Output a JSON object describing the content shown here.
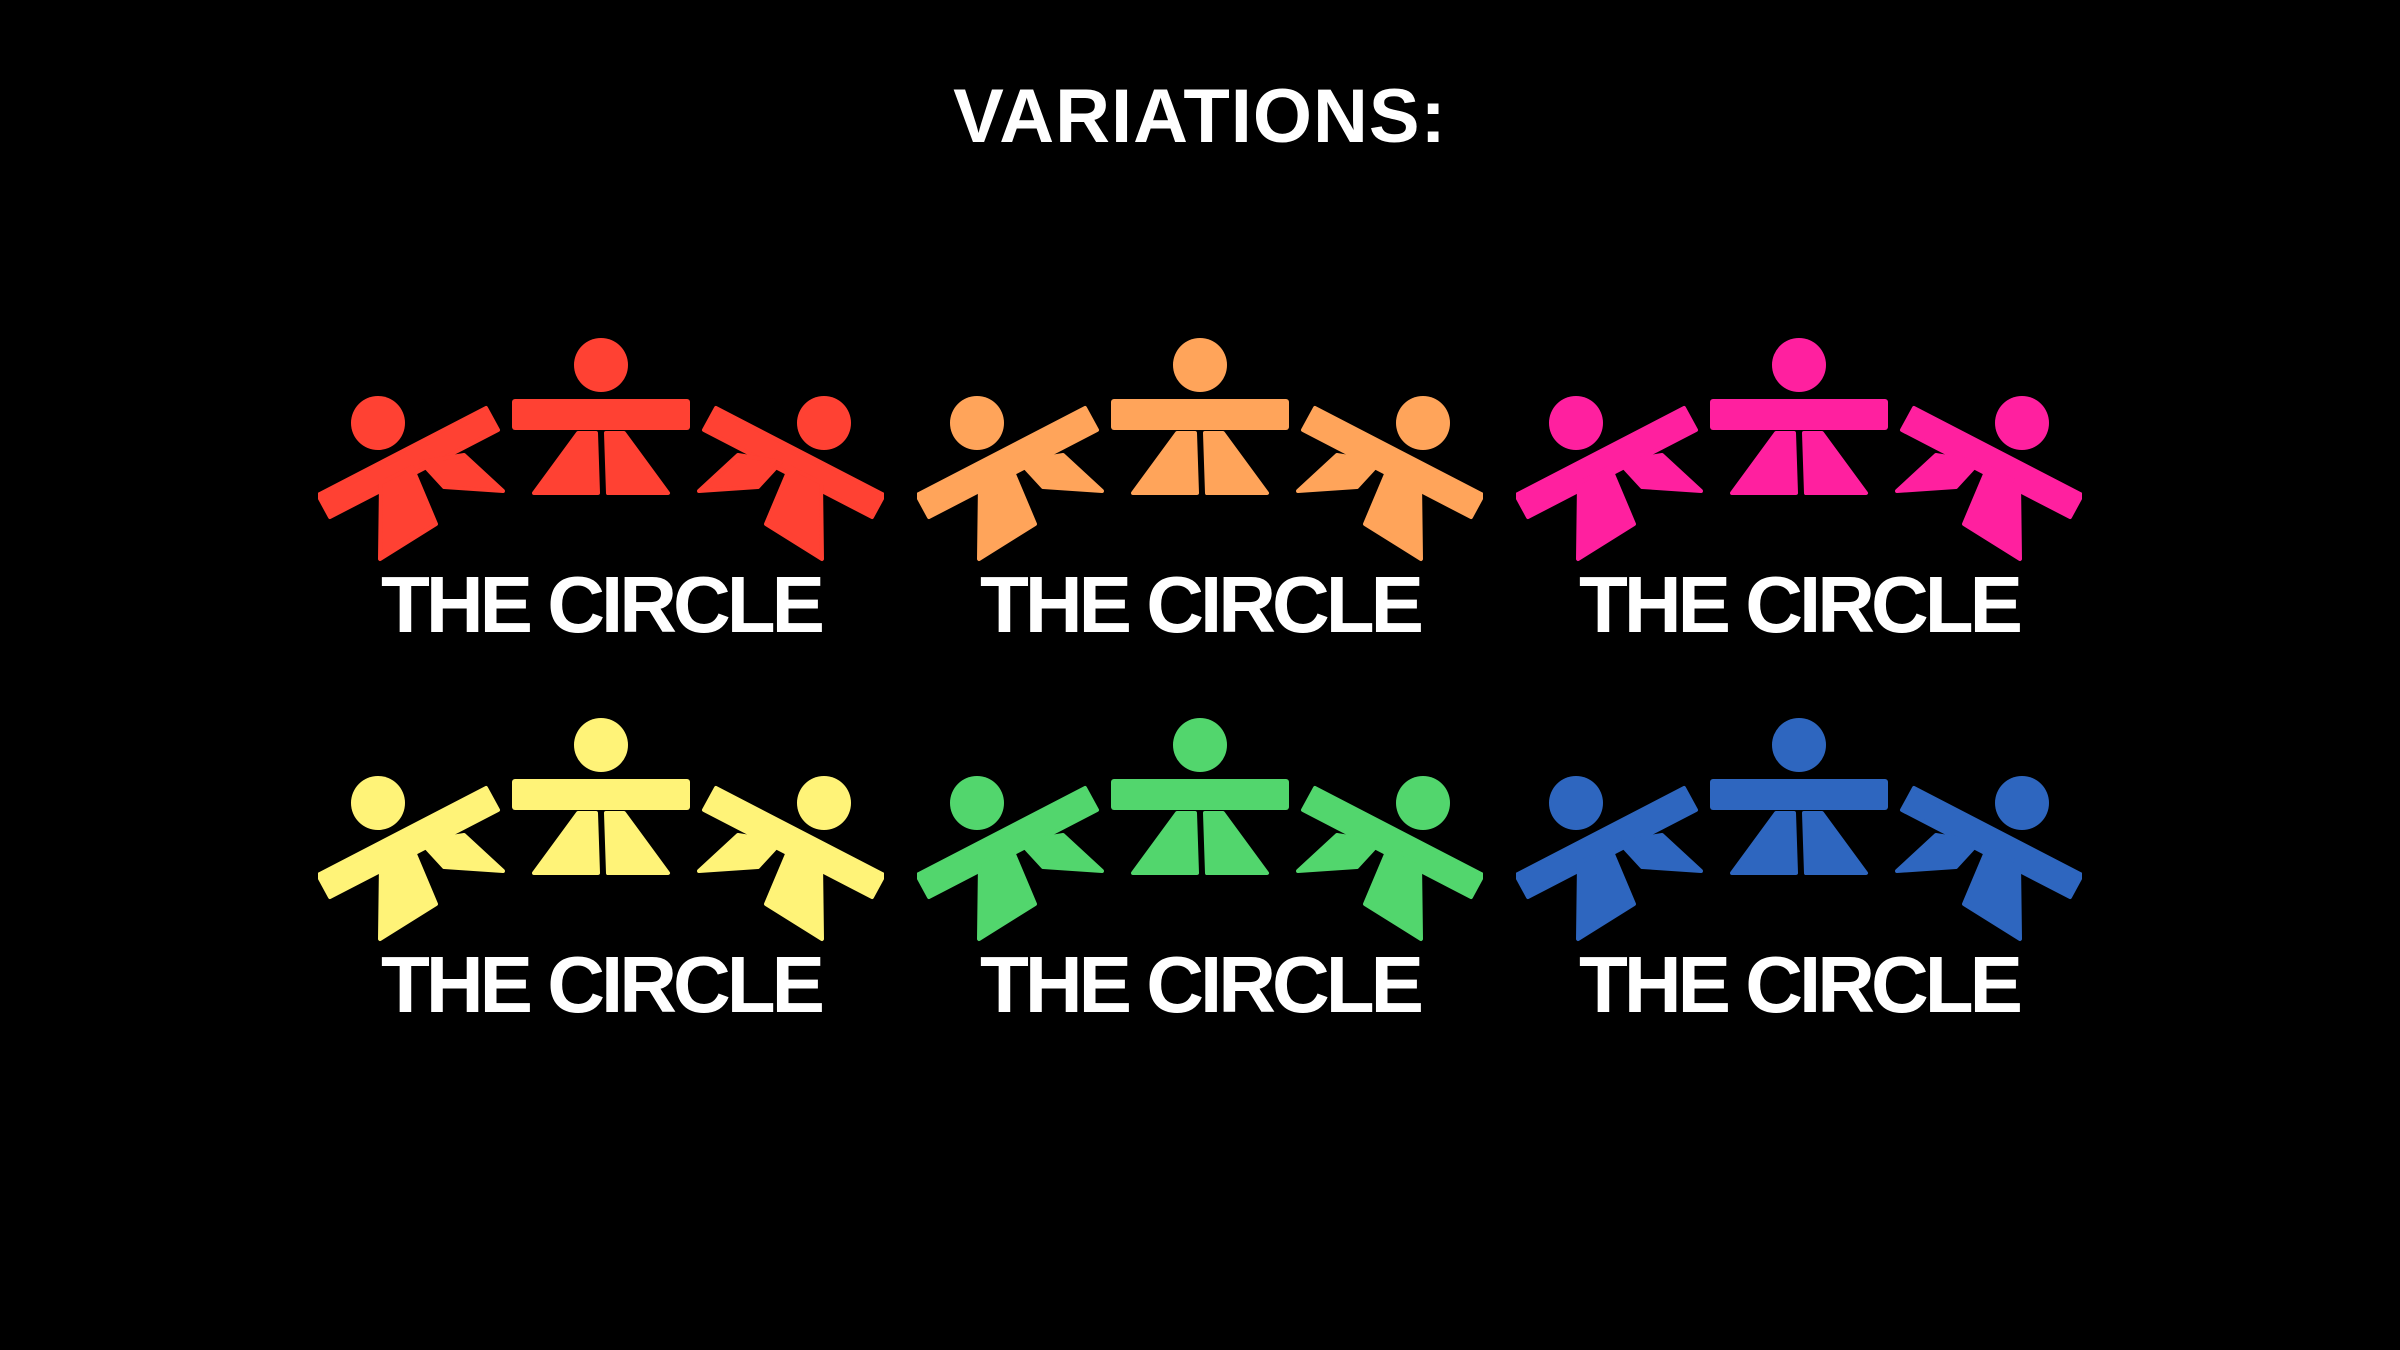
{
  "title": "VARIATIONS:",
  "logos": [
    {
      "name": "THE CIRCLE",
      "color": "#ff4133"
    },
    {
      "name": "THE CIRCLE",
      "color": "#ffa45a"
    },
    {
      "name": "THE CIRCLE",
      "color": "#ff209f"
    },
    {
      "name": "THE CIRCLE",
      "color": "#fff378"
    },
    {
      "name": "THE CIRCLE",
      "color": "#52d66d"
    },
    {
      "name": "THE CIRCLE",
      "color": "#2e66bf"
    }
  ]
}
